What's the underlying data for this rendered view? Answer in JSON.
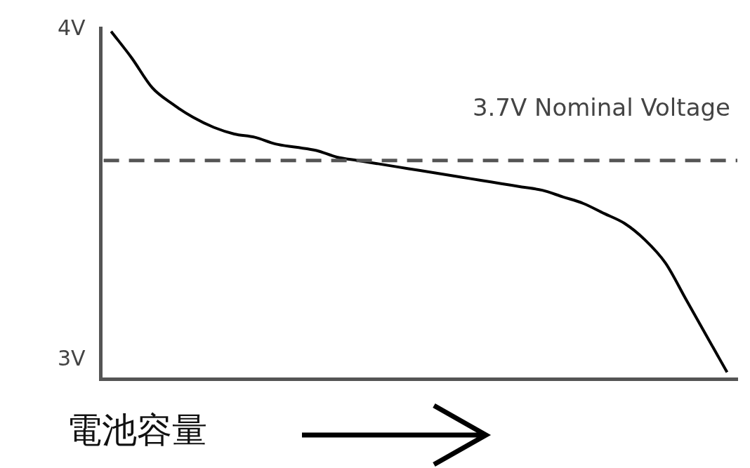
{
  "chart_data": {
    "type": "line",
    "xlabel": "電池容量",
    "categories": [
      null,
      null,
      null,
      null,
      null,
      null,
      null,
      null,
      null,
      null,
      null,
      null,
      null,
      null,
      null,
      null,
      null,
      null,
      null,
      null,
      null,
      null,
      null,
      null,
      null,
      null,
      null,
      null,
      null,
      null,
      null
    ],
    "series": [
      {
        "color": "#000000",
        "values": [
          4.0,
          3.92,
          3.83,
          3.78,
          3.74,
          3.71,
          3.69,
          3.68,
          3.66,
          3.65,
          3.64,
          3.62,
          3.61,
          3.6,
          3.59,
          3.58,
          3.57,
          3.56,
          3.55,
          3.54,
          3.53,
          3.52,
          3.5,
          3.48,
          3.45,
          3.42,
          3.37,
          3.3,
          3.19,
          3.08,
          2.97
        ]
      }
    ],
    "ylim": [
      2.95,
      4.01
    ],
    "yticks": [
      {
        "value": 3,
        "label": "3V"
      },
      {
        "value": 4,
        "label": "4V"
      }
    ],
    "ref_lines": [
      {
        "axis": "y",
        "value": 3.61,
        "color": "#555555",
        "line_style": "dashed"
      }
    ],
    "annotations": [
      "3.7V Nominal Voltage"
    ],
    "grid": false,
    "legend": false,
    "marker": "none",
    "line_style": "solid"
  }
}
